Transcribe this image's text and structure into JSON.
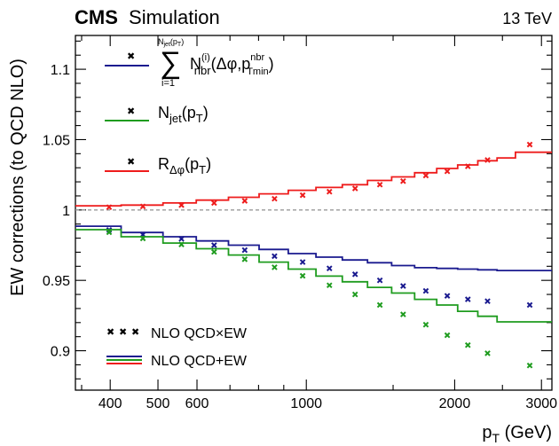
{
  "header": {
    "experiment": "CMS",
    "experiment_sub": "Simulation",
    "energy": "13 TeV"
  },
  "legend_markers": {
    "nlo_qcd_x_ew": "NLO QCD×EW",
    "nlo_qcd_plus_ew": "NLO QCD+EW"
  },
  "legend_series": {
    "sum": {
      "sum_upper": "N",
      "sum_upper_sub": "jet",
      "sum_upper_paren": "(p",
      "sum_upper_paren_sub": "T",
      "sum_upper_close": ")",
      "sum_lower": "i=1",
      "sum_symbol": "∑",
      "term": "N",
      "term_sup": "(i)",
      "term_sub": "nbr",
      "term_args": "(Δφ,p",
      "term_args_sup": "nbr",
      "term_args_sub": "Tmin",
      "term_close": ")"
    },
    "njet": {
      "base": "N",
      "sub": "jet",
      "paren": "(p",
      "paren_sub": "T",
      "close": ")"
    },
    "rdphi": {
      "base": "R",
      "sub": "Δφ",
      "paren": "(p",
      "paren_sub": "T",
      "close": ")"
    }
  },
  "colors": {
    "blue": "#1a1a8f",
    "green": "#1f9c1f",
    "red": "#ee1c1c",
    "reference": "#999999"
  },
  "chart_data": {
    "type": "line",
    "xscale": "log",
    "xlim": [
      340,
      3150
    ],
    "ylim": [
      0.872,
      1.124
    ],
    "xlabel": "p",
    "xlabel_sub": "T",
    "xlabel_unit": " (GeV)",
    "ylabel": "EW corrections (to QCD NLO)",
    "x_ticks": [
      {
        "v": 400,
        "label": "400"
      },
      {
        "v": 500,
        "label": "500"
      },
      {
        "v": 600,
        "label": "600"
      },
      {
        "v": 1000,
        "label": "1000"
      },
      {
        "v": 2000,
        "label": "2000"
      },
      {
        "v": 3000,
        "label": "3000"
      }
    ],
    "x_minor_ticks": [
      350,
      700,
      800,
      900,
      1500,
      2500
    ],
    "y_ticks": [
      {
        "v": 0.9,
        "label": "0.9"
      },
      {
        "v": 0.95,
        "label": "0.95"
      },
      {
        "v": 1.0,
        "label": "1"
      },
      {
        "v": 1.05,
        "label": "1.05"
      },
      {
        "v": 1.1,
        "label": "1.1"
      }
    ],
    "y_minor_step": 0.01,
    "reference_line": 1.0,
    "bin_edges": [
      340,
      421,
      512,
      598,
      695,
      802,
      919,
      1046,
      1183,
      1331,
      1490,
      1659,
      1839,
      2028,
      2228,
      2438,
      2656,
      3150
    ],
    "series": [
      {
        "key": "blue",
        "color_key": "blue",
        "hist": [
          0.9885,
          0.984,
          0.981,
          0.978,
          0.975,
          0.972,
          0.969,
          0.9665,
          0.9645,
          0.9625,
          0.9605,
          0.959,
          0.9585,
          0.958,
          0.9575,
          0.957,
          0.957
        ],
        "points_x": [
          398,
          466,
          558,
          650,
          750,
          862,
          983,
          1114,
          1256,
          1410,
          1572,
          1748,
          1932,
          2127,
          2332,
          2840
        ],
        "points_y": [
          0.9858,
          0.9825,
          0.9795,
          0.975,
          0.9715,
          0.9672,
          0.963,
          0.9585,
          0.9543,
          0.95,
          0.946,
          0.9425,
          0.939,
          0.9365,
          0.9352,
          0.9325
        ]
      },
      {
        "key": "green",
        "color_key": "green",
        "hist": [
          0.986,
          0.981,
          0.9765,
          0.9725,
          0.968,
          0.963,
          0.958,
          0.953,
          0.949,
          0.945,
          0.941,
          0.9365,
          0.9325,
          0.928,
          0.9245,
          0.9205,
          0.9205
        ],
        "points_x": [
          398,
          466,
          558,
          650,
          750,
          862,
          983,
          1114,
          1256,
          1410,
          1572,
          1748,
          1932,
          2127,
          2332,
          2840
        ],
        "points_y": [
          0.9842,
          0.9798,
          0.9755,
          0.9702,
          0.965,
          0.9593,
          0.9532,
          0.9465,
          0.94,
          0.9325,
          0.9258,
          0.9185,
          0.911,
          0.904,
          0.8982,
          0.8895
        ]
      },
      {
        "key": "red",
        "color_key": "red",
        "hist": [
          1.003,
          1.0035,
          1.005,
          1.007,
          1.009,
          1.0115,
          1.014,
          1.016,
          1.018,
          1.021,
          1.0235,
          1.0265,
          1.0295,
          1.032,
          1.035,
          1.037,
          1.041
        ],
        "points_x": [
          398,
          466,
          558,
          650,
          750,
          862,
          983,
          1114,
          1256,
          1410,
          1572,
          1748,
          1932,
          2127,
          2332,
          2840
        ],
        "points_y": [
          1.002,
          1.0025,
          1.0035,
          1.005,
          1.0065,
          1.008,
          1.0105,
          1.013,
          1.0153,
          1.018,
          1.0205,
          1.0245,
          1.0275,
          1.031,
          1.0355,
          1.0465
        ]
      }
    ]
  }
}
